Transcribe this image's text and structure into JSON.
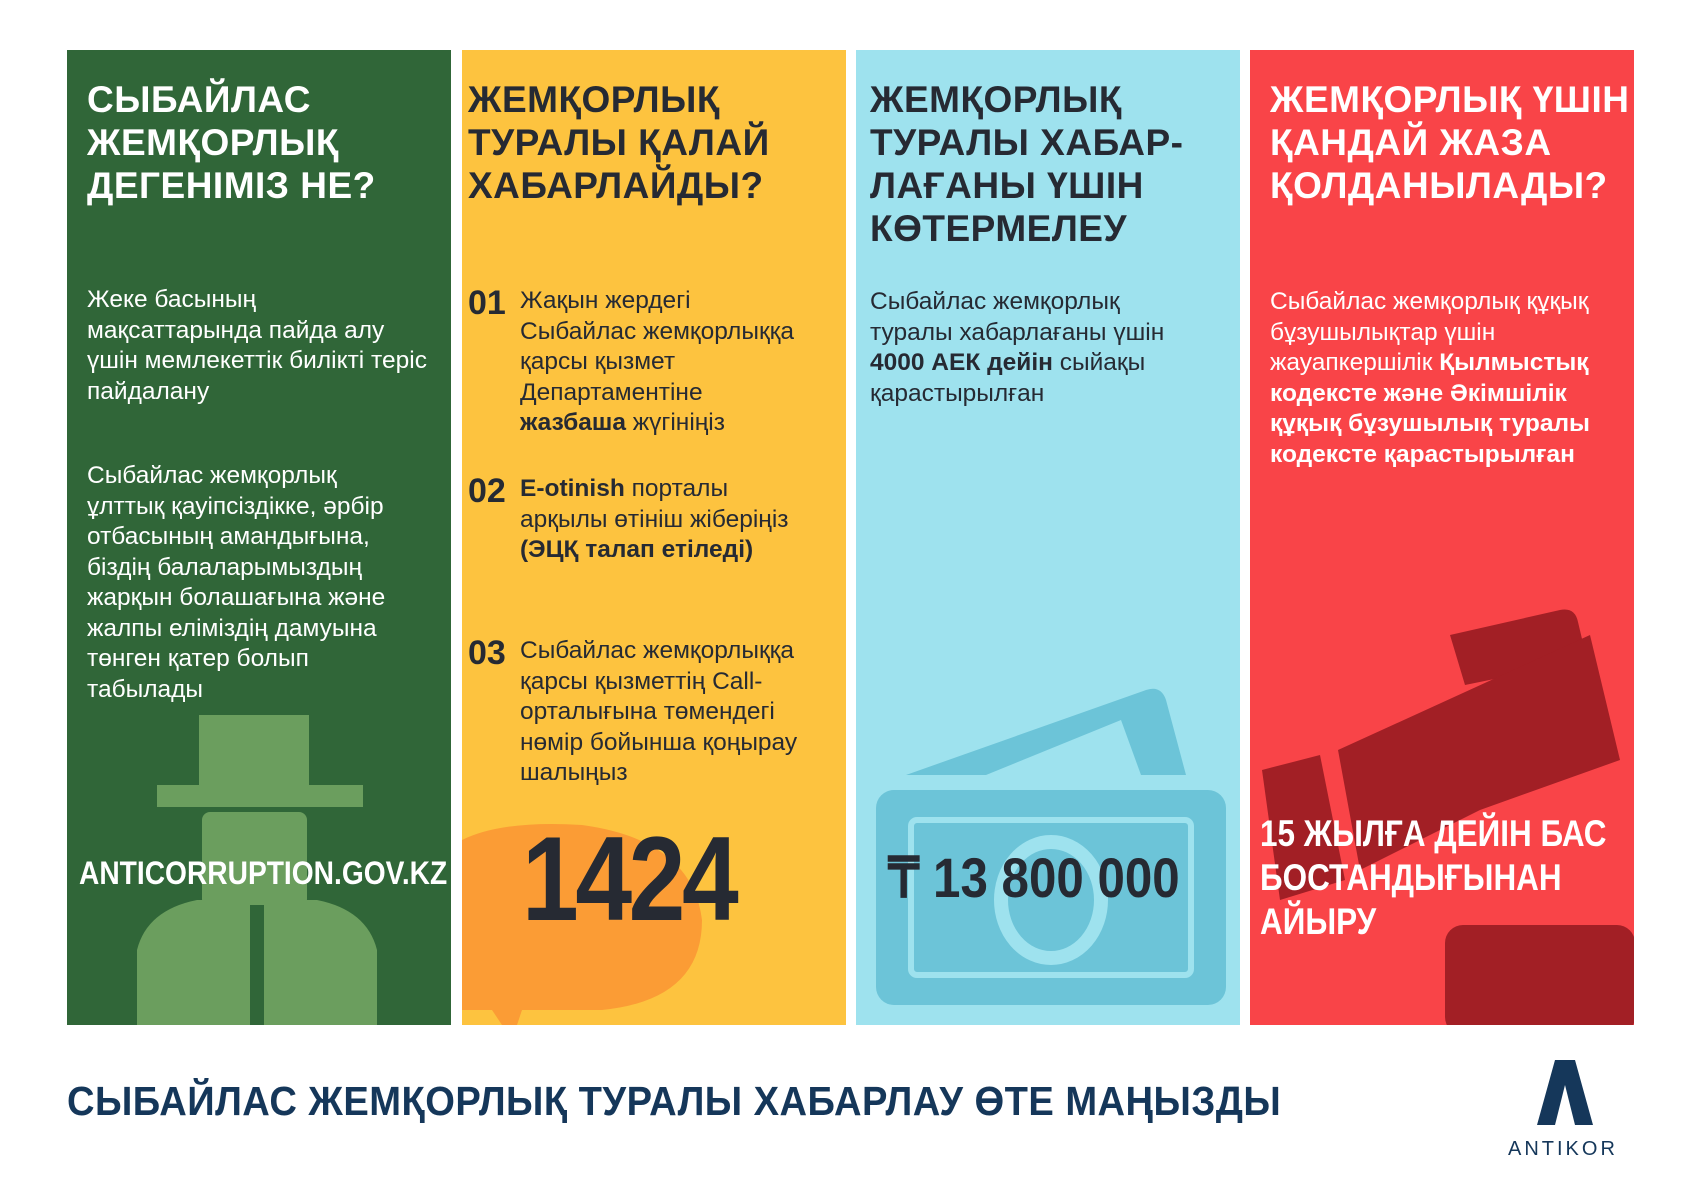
{
  "columns": [
    {
      "title": "СЫБАЙЛАС ЖЕМҚОРЛЫҚ ДЕГЕНІМІЗ НЕ?",
      "paragraphs": [
        "Жеке басының мақсаттарында пайда алу үшін мемлекеттік билікті теріс пайдалану",
        "Сыбайлас жемқорлық ұлттық қауіпсіздікке, әрбір отбасының амандығына, біздің балаларымыздың жарқын болашағына және жалпы еліміздің дамуына төнген қатер болып табылады"
      ],
      "website": "ANTICORRUPTION.GOV.KZ",
      "color": "#306638",
      "illustration": "spy-hat-icon"
    },
    {
      "title": "ЖЕМҚОРЛЫҚ ТУРАЛЫ ҚАЛАЙ ХАБАРЛАЙДЫ?",
      "steps": [
        {
          "num": "01",
          "text": "Жақын жердегі Сыбайлас жемқорлыққа қарсы қызмет Департаментіне ",
          "bold": "жазбаша",
          "after": " жүгініңіз"
        },
        {
          "num": "02",
          "bold": "E-otinish",
          "text": " порталы арқылы өтініш жіберіңіз ",
          "bold2": "(ЭЦҚ талап етіледі)"
        },
        {
          "num": "03",
          "text": "Сыбайлас жемқорлыққа қарсы қызметтің  Call-орталығына төмендегі нөмір бойынша қоңырау шалыңыз"
        }
      ],
      "phone": "1424",
      "color": "#fdc33f",
      "illustration": "speech-bubble-icon"
    },
    {
      "title": "ЖЕМҚОРЛЫҚ ТУРАЛЫ ХАБАР-ЛАҒАНЫ ҮШІН КӨТЕРМЕЛЕУ",
      "text_before": "Сыбайлас жемқорлық туралы хабарлағаны үшін ",
      "bold": "4000 АЕК дейін",
      "text_after": " сыйақы қарастырылған",
      "amount": "₸ 13 800 000",
      "color": "#9ee2ee",
      "illustration": "banknote-icon"
    },
    {
      "title": "ЖЕМҚОРЛЫҚ ҮШІН ҚАНДАЙ ЖАЗА ҚОЛДАНЫЛАДЫ?",
      "text": "Сыбайлас жемқорлық құқық бұзушылықтар үшін жауапкершілік ",
      "bold": "Қылмыстық кодексте және Әкімшілік құқық бұзушылық туралы кодексте қарастырылған",
      "penalty": "15 ЖЫЛҒА ДЕЙІН БАС БОСТАНДЫҒЫНАН АЙЫРУ",
      "color": "#f94448",
      "illustration": "gavel-icon"
    }
  ],
  "footer": "СЫБАЙЛАС ЖЕМҚОРЛЫҚ ТУРАЛЫ ХАБАРЛАУ ӨТЕ МАҢЫЗДЫ",
  "logo": "ANTIKOR"
}
